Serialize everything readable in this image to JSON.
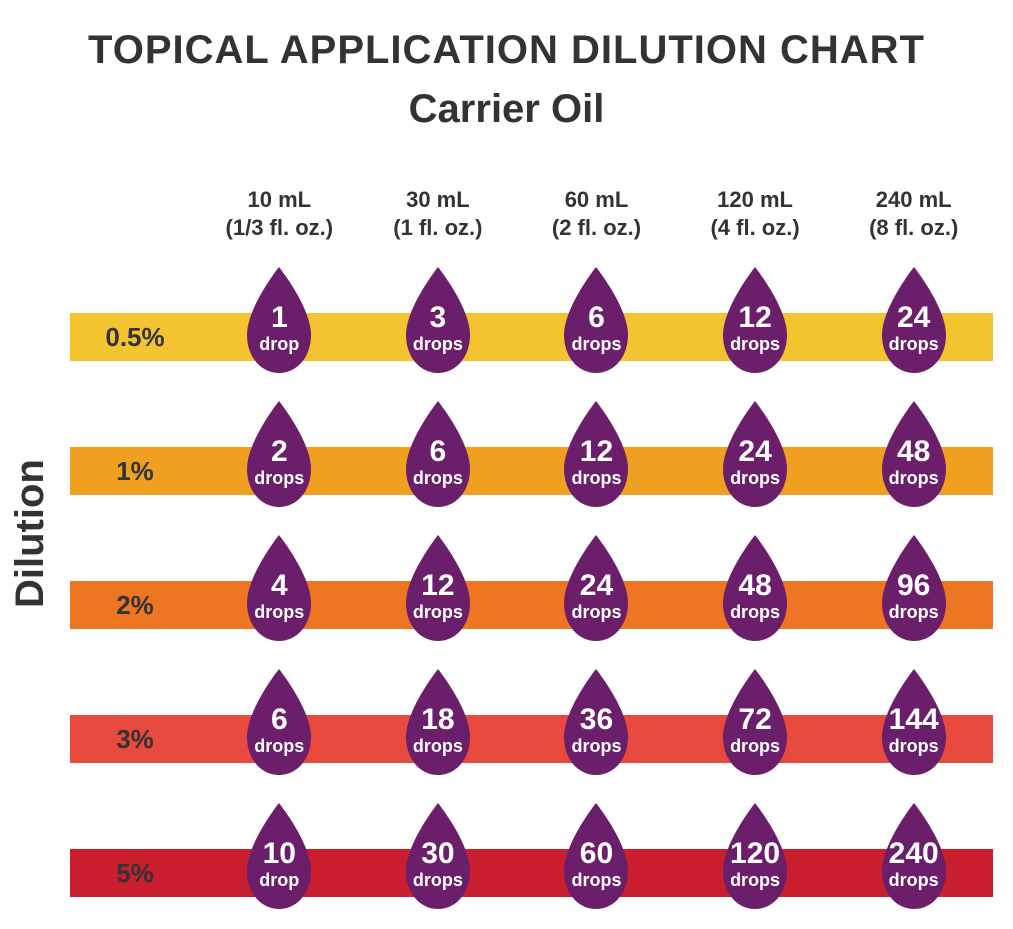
{
  "title": "TOPICAL APPLICATION DILUTION CHART",
  "x_axis_title": "Carrier Oil",
  "y_axis_title": "Dilution",
  "background_color": "#ffffff",
  "text_color": "#333333",
  "drop_fill": "#6b1f6b",
  "drop_text_color": "#ffffff",
  "title_fontsize": 40,
  "axis_title_fontsize": 40,
  "col_header_fontsize": 22,
  "row_label_fontsize": 26,
  "drop_num_fontsize": 30,
  "drop_unit_fontsize": 18,
  "columns": [
    {
      "ml": "10 mL",
      "oz": "(1/3 fl. oz.)"
    },
    {
      "ml": "30 mL",
      "oz": "(1 fl. oz.)"
    },
    {
      "ml": "60 mL",
      "oz": "(2 fl. oz.)"
    },
    {
      "ml": "120 mL",
      "oz": "(4 fl. oz.)"
    },
    {
      "ml": "240 mL",
      "oz": "(8 fl. oz.)"
    }
  ],
  "rows": [
    {
      "label": "0.5%",
      "bar_color": "#f4c430",
      "drops": [
        {
          "n": "1",
          "u": "drop"
        },
        {
          "n": "3",
          "u": "drops"
        },
        {
          "n": "6",
          "u": "drops"
        },
        {
          "n": "12",
          "u": "drops"
        },
        {
          "n": "24",
          "u": "drops"
        }
      ]
    },
    {
      "label": "1%",
      "bar_color": "#f0a020",
      "drops": [
        {
          "n": "2",
          "u": "drops"
        },
        {
          "n": "6",
          "u": "drops"
        },
        {
          "n": "12",
          "u": "drops"
        },
        {
          "n": "24",
          "u": "drops"
        },
        {
          "n": "48",
          "u": "drops"
        }
      ]
    },
    {
      "label": "2%",
      "bar_color": "#ee7522",
      "drops": [
        {
          "n": "4",
          "u": "drops"
        },
        {
          "n": "12",
          "u": "drops"
        },
        {
          "n": "24",
          "u": "drops"
        },
        {
          "n": "48",
          "u": "drops"
        },
        {
          "n": "96",
          "u": "drops"
        }
      ]
    },
    {
      "label": "3%",
      "bar_color": "#e84a3d",
      "drops": [
        {
          "n": "6",
          "u": "drops"
        },
        {
          "n": "18",
          "u": "drops"
        },
        {
          "n": "36",
          "u": "drops"
        },
        {
          "n": "72",
          "u": "drops"
        },
        {
          "n": "144",
          "u": "drops"
        }
      ]
    },
    {
      "label": "5%",
      "bar_color": "#c81e2e",
      "drops": [
        {
          "n": "10",
          "u": "drop"
        },
        {
          "n": "30",
          "u": "drops"
        },
        {
          "n": "60",
          "u": "drops"
        },
        {
          "n": "120",
          "u": "drops"
        },
        {
          "n": "240",
          "u": "drops"
        }
      ]
    }
  ]
}
